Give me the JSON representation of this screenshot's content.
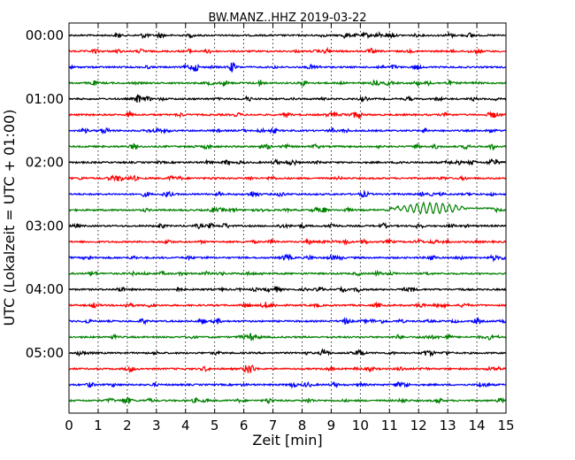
{
  "chart_data": {
    "type": "line",
    "title": "BW.MANZ..HHZ 2019-03-22",
    "xlabel": "Zeit  [min]",
    "ylabel": "UTC (Lokalzeit = UTC + 01:00)",
    "xlim": [
      0,
      15
    ],
    "x_ticks": [
      "0",
      "1",
      "2",
      "3",
      "4",
      "5",
      "6",
      "7",
      "8",
      "9",
      "10",
      "11",
      "12",
      "13",
      "14",
      "15"
    ],
    "y_ticks": [
      "00:00",
      "01:00",
      "02:00",
      "03:00",
      "04:00",
      "05:00"
    ],
    "grid": "vertical dotted",
    "trace_colors": [
      "#000000",
      "#ff0000",
      "#0000ff",
      "#008000"
    ],
    "rows": [
      {
        "start": "00:00",
        "color": "#000000"
      },
      {
        "start": "00:15",
        "color": "#ff0000"
      },
      {
        "start": "00:30",
        "color": "#0000ff"
      },
      {
        "start": "00:45",
        "color": "#008000"
      },
      {
        "start": "01:00",
        "color": "#000000"
      },
      {
        "start": "01:15",
        "color": "#ff0000"
      },
      {
        "start": "01:30",
        "color": "#0000ff"
      },
      {
        "start": "01:45",
        "color": "#008000"
      },
      {
        "start": "02:00",
        "color": "#000000"
      },
      {
        "start": "02:15",
        "color": "#ff0000"
      },
      {
        "start": "02:30",
        "color": "#0000ff"
      },
      {
        "start": "02:45",
        "color": "#008000",
        "event": {
          "x_start": 11.0,
          "x_end": 14.6,
          "amplitude": "large"
        }
      },
      {
        "start": "03:00",
        "color": "#000000"
      },
      {
        "start": "03:15",
        "color": "#ff0000"
      },
      {
        "start": "03:30",
        "color": "#0000ff"
      },
      {
        "start": "03:45",
        "color": "#008000"
      },
      {
        "start": "04:00",
        "color": "#000000"
      },
      {
        "start": "04:15",
        "color": "#ff0000"
      },
      {
        "start": "04:30",
        "color": "#0000ff"
      },
      {
        "start": "04:45",
        "color": "#008000"
      },
      {
        "start": "05:00",
        "color": "#000000"
      },
      {
        "start": "05:15",
        "color": "#ff0000"
      },
      {
        "start": "05:30",
        "color": "#0000ff"
      },
      {
        "start": "05:45",
        "color": "#008000"
      }
    ]
  }
}
